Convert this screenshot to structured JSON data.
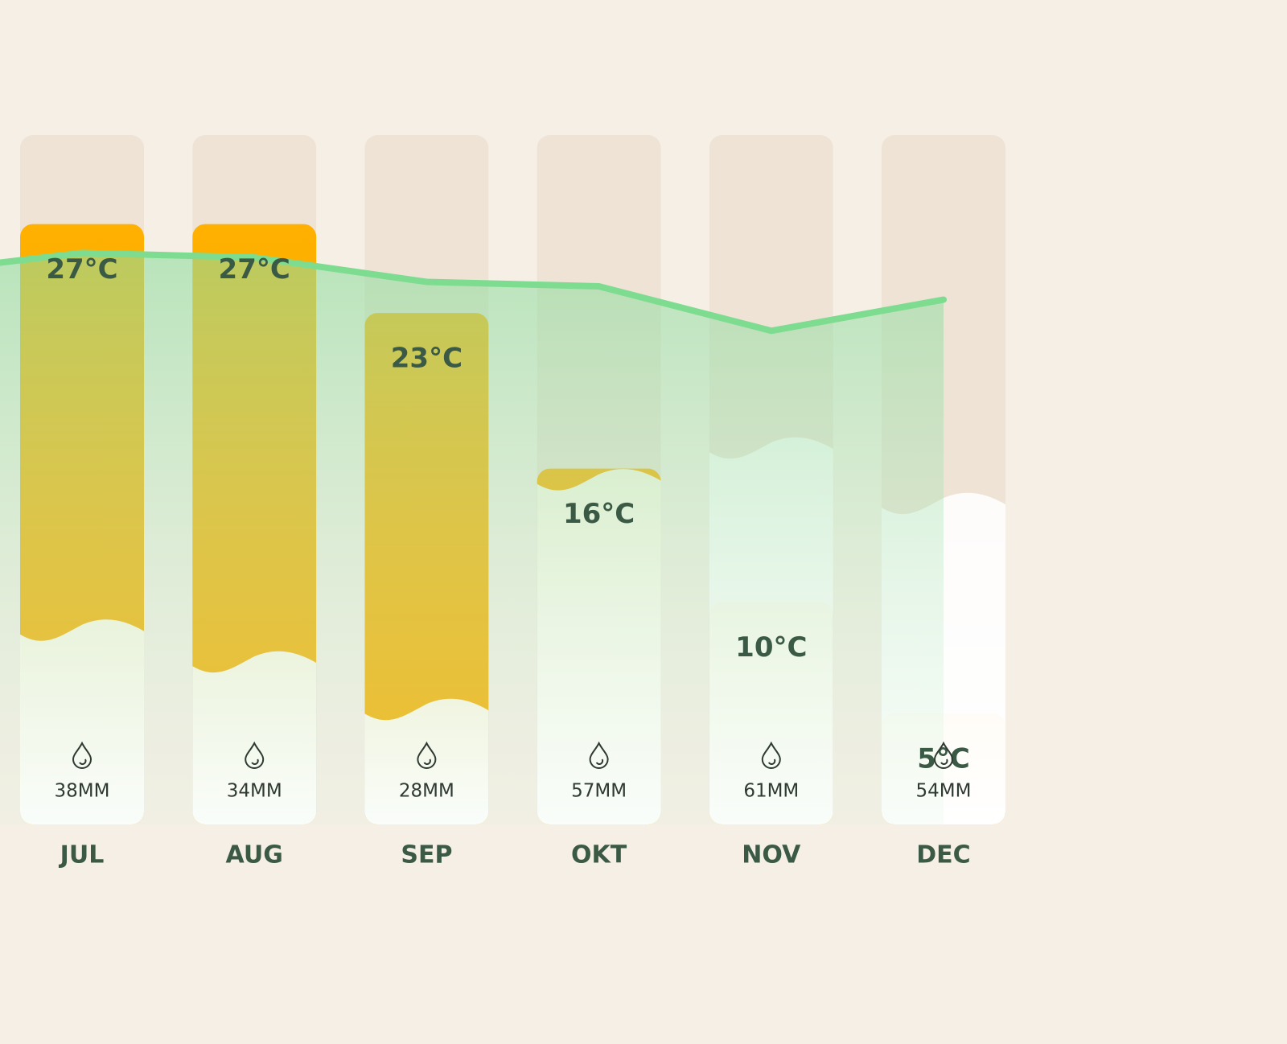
{
  "chart_data": {
    "type": "bar",
    "categories": [
      "JUL",
      "AUG",
      "SEP",
      "OKT",
      "NOV",
      "DEC"
    ],
    "values": [
      27,
      27,
      23,
      16,
      10,
      5
    ],
    "value_labels": [
      "27°C",
      "27°C",
      "23°C",
      "16°C",
      "10°C",
      "5°C"
    ],
    "color": "#ffb300",
    "ylim": [
      0,
      31
    ],
    "precipitation": {
      "axis": "y2",
      "values": [
        38,
        34,
        28,
        57,
        61,
        54
      ],
      "value_labels": [
        "38MM",
        "34MM",
        "28MM",
        "57MM",
        "61MM",
        "54MM"
      ]
    },
    "y2lim": [
      13,
      100
    ],
    "line": {
      "color": "#7ddc8f",
      "values": [
        25.7,
        25.5,
        24.4,
        24.2,
        22.2,
        23.6
      ]
    }
  }
}
